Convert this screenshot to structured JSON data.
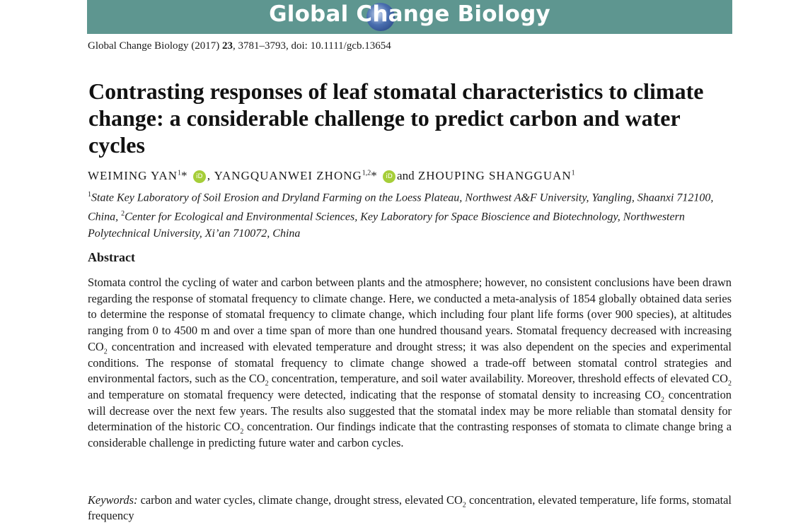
{
  "journal": {
    "name": "Global Change Biology",
    "banner_color": "#5e9690"
  },
  "citation": {
    "journal": "Global Change Biology",
    "year": "(2017)",
    "volume": "23",
    "pages": ", 3781–3793, doi: 10.1111/gcb.13654"
  },
  "title": "Contrasting responses of leaf stomatal characteristics to climate change: a considerable challenge to predict carbon and water cycles",
  "authors": [
    {
      "name": "WEIMING YAN",
      "sup": "1",
      "mark": "*"
    },
    {
      "name": "YANGQUANWEI ZHONG",
      "sup": "1,2",
      "mark": "*"
    },
    {
      "name": "ZHOUPING SHANGGUAN",
      "sup": "1",
      "mark": ""
    }
  ],
  "author_separators": [
    ",",
    "and"
  ],
  "orcid_label": "iD",
  "affiliations": [
    {
      "num": "1",
      "text": "State Key Laboratory of Soil Erosion and Dryland Farming on the Loess Plateau, Northwest A&F University, Yangling, Shaanxi 712100, China, "
    },
    {
      "num": "2",
      "text": "Center for Ecological and Environmental Sciences, Key Laboratory for Space Bioscience and Biotechnology, Northwestern Polytechnical University, Xi’an 710072, China"
    }
  ],
  "abstract": {
    "heading": "Abstract",
    "segments": [
      "Stomata control the cycling of water and carbon between plants and the atmosphere; however, no consistent conclusions have been drawn regarding the response of stomatal frequency to climate change. Here, we conducted a meta-analysis of 1854 globally obtained data series to determine the response of stomatal frequency to climate change, which including four plant life forms (over 900 species), at altitudes ranging from 0 to 4500 m and over a time span of more than one hundred thousand years. Stomatal frequency decreased with increasing CO",
      " concentration and increased with elevated temperature and drought stress; it was also dependent on the species and experimental conditions. The response of stomatal frequency to climate change showed a trade-off between stomatal control strategies and environmental factors, such as the CO",
      " concentration, temperature, and soil water availability. Moreover, threshold effects of elevated CO",
      " and temperature on stomatal frequency were detected, indicating that the response of stomatal density to increasing CO",
      " concentration will decrease over the next few years. The results also suggested that the stomatal index may be more reliable than stomatal density for determination of the historic CO",
      " concentration. Our findings indicate that the contrasting responses of stomata to climate change bring a considerable challenge in predicting future water and carbon cycles."
    ],
    "subscript": "2"
  },
  "keywords": {
    "label": "Keywords:",
    "before": " carbon and water cycles, climate change, drought stress, elevated CO",
    "sub": "2",
    "after": " concentration, elevated temperature, life forms, stomatal frequency"
  }
}
